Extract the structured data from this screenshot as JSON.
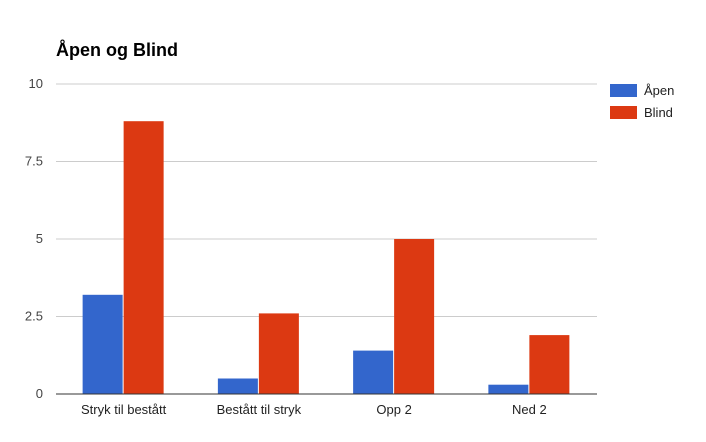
{
  "chart_data": {
    "type": "bar",
    "title": "Åpen og Blind",
    "xlabel": "",
    "ylabel": "",
    "categories": [
      "Stryk til bestått",
      "Bestått til stryk",
      "Opp 2",
      "Ned 2"
    ],
    "series": [
      {
        "name": "Åpen",
        "color": "#3366cc",
        "values": [
          3.2,
          0.5,
          1.4,
          0.3
        ]
      },
      {
        "name": "Blind",
        "color": "#dc3912",
        "values": [
          8.8,
          2.6,
          5.0,
          1.9
        ]
      }
    ],
    "ylim": [
      0,
      10
    ],
    "yticks": [
      {
        "value": 0,
        "label": "0"
      },
      {
        "value": 2.5,
        "label": "2.5"
      },
      {
        "value": 5,
        "label": "5"
      },
      {
        "value": 7.5,
        "label": "7.5"
      },
      {
        "value": 10,
        "label": "10"
      }
    ],
    "grid": true,
    "legend": "right"
  }
}
